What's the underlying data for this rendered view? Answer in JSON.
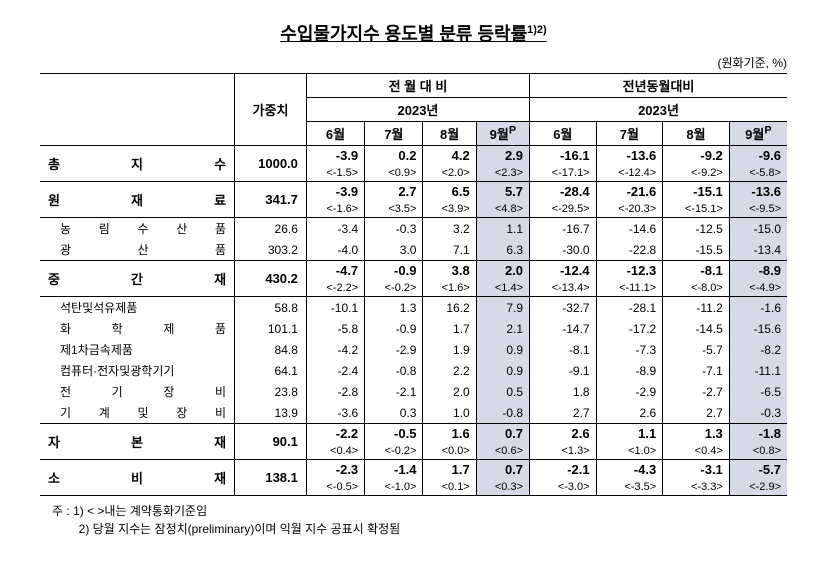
{
  "title": "수입물가지수 용도별 분류 등락률",
  "title_sup": "1)2)",
  "unit": "(원화기준, %)",
  "header": {
    "weight": "가중치",
    "mom": "전 월 대 비",
    "yoy": "전년동월대비",
    "year": "2023년",
    "months": [
      "6월",
      "7월",
      "8월",
      "9월",
      "6월",
      "7월",
      "8월",
      "9월"
    ],
    "prelim": "P"
  },
  "rows": [
    {
      "label": "총       지       수",
      "weight": "1000.0",
      "main": [
        "-3.9",
        "0.2",
        "4.2",
        "2.9",
        "-16.1",
        "-13.6",
        "-9.2",
        "-9.6"
      ],
      "contract": [
        "<-1.5>",
        "<0.9>",
        "<2.0>",
        "<2.3>",
        "<-17.1>",
        "<-12.4>",
        "<-9.2>",
        "<-5.8>"
      ],
      "bold": true
    },
    {
      "label": "원      재      료",
      "weight": "341.7",
      "main": [
        "-3.9",
        "2.7",
        "6.5",
        "5.7",
        "-28.4",
        "-21.6",
        "-15.1",
        "-13.6"
      ],
      "contract": [
        "<-1.6>",
        "<3.5>",
        "<3.9>",
        "<4.8>",
        "<-29.5>",
        "<-20.3>",
        "<-15.1>",
        "<-9.5>"
      ],
      "bold": true
    },
    {
      "sub": true,
      "label": "농 림 수 산 품",
      "weight": "26.6",
      "main": [
        "-3.4",
        "-0.3",
        "3.2",
        "1.1",
        "-16.7",
        "-14.6",
        "-12.5",
        "-15.0"
      ]
    },
    {
      "sub": true,
      "label": "광      산      품",
      "weight": "303.2",
      "main": [
        "-4.0",
        "3.0",
        "7.1",
        "6.3",
        "-30.0",
        "-22.8",
        "-15.5",
        "-13.4"
      ]
    },
    {
      "label": "중      간      재",
      "weight": "430.2",
      "main": [
        "-4.7",
        "-0.9",
        "3.8",
        "2.0",
        "-12.4",
        "-12.3",
        "-8.1",
        "-8.9"
      ],
      "contract": [
        "<-2.2>",
        "<-0.2>",
        "<1.6>",
        "<1.4>",
        "<-13.4>",
        "<-11.1>",
        "<-8.0>",
        "<-4.9>"
      ],
      "bold": true
    },
    {
      "sub": true,
      "label": "석탄및석유제품",
      "weight": "58.8",
      "main": [
        "-10.1",
        "1.3",
        "16.2",
        "7.9",
        "-32.7",
        "-28.1",
        "-11.2",
        "-1.6"
      ]
    },
    {
      "sub": true,
      "label": "화  학  제  품",
      "weight": "101.1",
      "main": [
        "-5.8",
        "-0.9",
        "1.7",
        "2.1",
        "-14.7",
        "-17.2",
        "-14.5",
        "-15.6"
      ]
    },
    {
      "sub": true,
      "label": "제1차금속제품",
      "weight": "84.8",
      "main": [
        "-4.2",
        "-2.9",
        "1.9",
        "0.9",
        "-8.1",
        "-7.3",
        "-5.7",
        "-8.2"
      ]
    },
    {
      "sub": true,
      "label": "컴퓨터·전자및광학기기",
      "weight": "64.1",
      "main": [
        "-2.4",
        "-0.8",
        "2.2",
        "0.9",
        "-9.1",
        "-8.9",
        "-7.1",
        "-11.1"
      ]
    },
    {
      "sub": true,
      "label": "전  기  장  비",
      "weight": "23.8",
      "main": [
        "-2.8",
        "-2.1",
        "2.0",
        "0.5",
        "1.8",
        "-2.9",
        "-2.7",
        "-6.5"
      ]
    },
    {
      "sub": true,
      "label": "기 계 및 장 비",
      "weight": "13.9",
      "main": [
        "-3.6",
        "0.3",
        "1.0",
        "-0.8",
        "2.7",
        "2.6",
        "2.7",
        "-0.3"
      ]
    },
    {
      "label": "자      본      재",
      "weight": "90.1",
      "main": [
        "-2.2",
        "-0.5",
        "1.6",
        "0.7",
        "2.6",
        "1.1",
        "1.3",
        "-1.8"
      ],
      "contract": [
        "<0.4>",
        "<-0.2>",
        "<0.0>",
        "<0.6>",
        "<1.3>",
        "<1.0>",
        "<0.4>",
        "<0.8>"
      ],
      "bold": true
    },
    {
      "label": "소      비      재",
      "weight": "138.1",
      "main": [
        "-2.3",
        "-1.4",
        "1.7",
        "0.7",
        "-2.1",
        "-4.3",
        "-3.1",
        "-5.7"
      ],
      "contract": [
        "<-0.5>",
        "<-1.0>",
        "<0.1>",
        "<0.3>",
        "<-3.0>",
        "<-3.5>",
        "<-3.3>",
        "<-2.9>"
      ],
      "bold": true
    }
  ],
  "notes": {
    "prefix": "주  :",
    "n1": "1)  < >내는 계약통화기준임",
    "n2": "2) 당월 지수는 잠정치(preliminary)이며 익월 지수 공표시 확정됨"
  },
  "colors": {
    "highlight": "#d6d9e6",
    "text": "#000000",
    "background": "#ffffff"
  }
}
